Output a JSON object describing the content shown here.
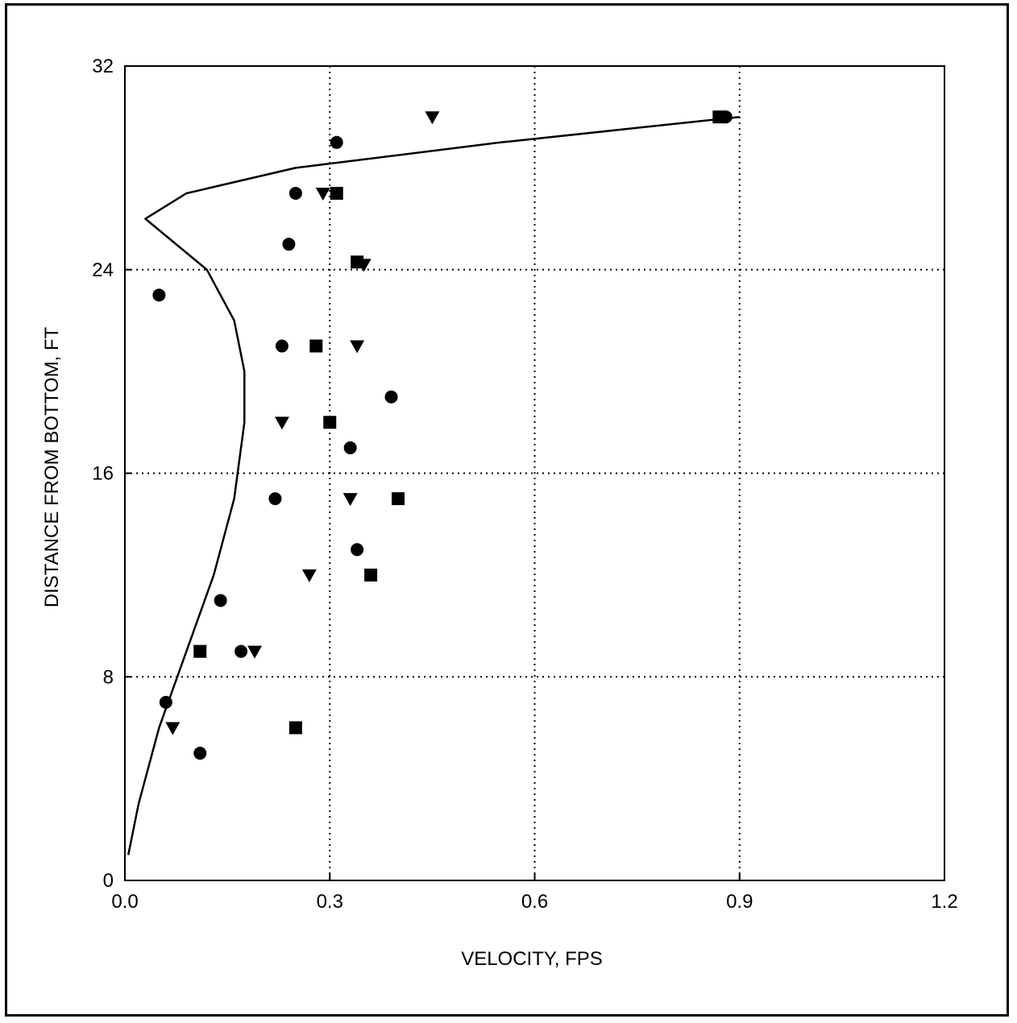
{
  "chart_data": {
    "type": "scatter",
    "title": "",
    "xlabel": "VELOCITY, FPS",
    "ylabel": "DISTANCE FROM BOTTOM, FT",
    "xlim": [
      0.0,
      1.2
    ],
    "ylim": [
      0,
      32
    ],
    "xticks": [
      0.0,
      0.3,
      0.6,
      0.9,
      1.2
    ],
    "xtick_labels": [
      "0.0",
      "0.3",
      "0.6",
      "0.9",
      "1.2"
    ],
    "yticks": [
      0,
      8,
      16,
      24,
      32
    ],
    "ytick_labels": [
      "0",
      "8",
      "16",
      "24",
      "32"
    ],
    "grid": "dotted",
    "legend": "none",
    "series": [
      {
        "marker": "circle",
        "points": [
          [
            0.88,
            30.0
          ],
          [
            0.31,
            29.0
          ],
          [
            0.25,
            27.0
          ],
          [
            0.24,
            25.0
          ],
          [
            0.05,
            23.0
          ],
          [
            0.23,
            21.0
          ],
          [
            0.39,
            19.0
          ],
          [
            0.33,
            17.0
          ],
          [
            0.22,
            15.0
          ],
          [
            0.34,
            13.0
          ],
          [
            0.14,
            11.0
          ],
          [
            0.17,
            9.0
          ],
          [
            0.06,
            7.0
          ],
          [
            0.11,
            5.0
          ]
        ]
      },
      {
        "marker": "square",
        "points": [
          [
            0.87,
            30.0
          ],
          [
            0.31,
            27.0
          ],
          [
            0.34,
            24.3
          ],
          [
            0.28,
            21.0
          ],
          [
            0.3,
            18.0
          ],
          [
            0.4,
            15.0
          ],
          [
            0.36,
            12.0
          ],
          [
            0.11,
            9.0
          ],
          [
            0.25,
            6.0
          ]
        ]
      },
      {
        "marker": "triangle-down",
        "points": [
          [
            0.45,
            30.0
          ],
          [
            0.29,
            27.0
          ],
          [
            0.35,
            24.2
          ],
          [
            0.34,
            21.0
          ],
          [
            0.23,
            18.0
          ],
          [
            0.33,
            15.0
          ],
          [
            0.27,
            12.0
          ],
          [
            0.19,
            9.0
          ],
          [
            0.07,
            6.0
          ]
        ]
      },
      {
        "marker": "line",
        "points": [
          [
            0.005,
            1.0
          ],
          [
            0.02,
            3.0
          ],
          [
            0.05,
            6.0
          ],
          [
            0.09,
            9.0
          ],
          [
            0.13,
            12.0
          ],
          [
            0.16,
            15.0
          ],
          [
            0.175,
            18.0
          ],
          [
            0.175,
            20.0
          ],
          [
            0.16,
            22.0
          ],
          [
            0.12,
            24.0
          ],
          [
            0.03,
            26.0
          ],
          [
            0.09,
            27.0
          ],
          [
            0.25,
            28.0
          ],
          [
            0.55,
            29.0
          ],
          [
            0.9,
            30.0
          ]
        ]
      }
    ]
  }
}
